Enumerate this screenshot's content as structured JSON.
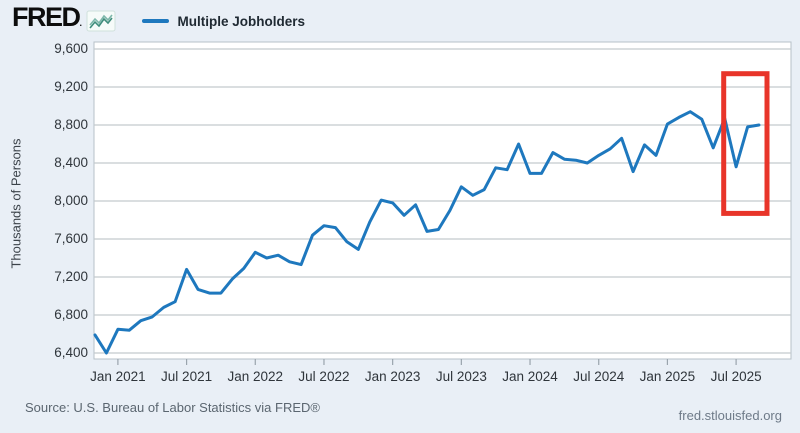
{
  "header": {
    "logo_text": "FRED",
    "logo_reg_mark": "®",
    "sparkline_icon": "fred-sparkline-icon",
    "legend": {
      "label": "Multiple Jobholders",
      "line_color": "#1e78be"
    }
  },
  "y_axis": {
    "title": "Thousands of Persons",
    "tick_labels": [
      "9,600",
      "9,200",
      "8,800",
      "8,400",
      "8,000",
      "7,600",
      "7,200",
      "6,800",
      "6,400"
    ]
  },
  "x_axis": {
    "tick_labels": [
      "Jan 2021",
      "Jul 2021",
      "Jan 2022",
      "Jul 2022",
      "Jan 2023",
      "Jul 2023",
      "Jan 2024",
      "Jul 2024",
      "Jan 2025",
      "Jul 2025"
    ]
  },
  "footer": {
    "source": "Source: U.S. Bureau of Labor Statistics via FRED®",
    "site": "fred.stlouisfed.org"
  },
  "colors": {
    "page_bg": "#e9eff6",
    "plot_bg": "#ffffff",
    "gridline": "#c4c9cd",
    "plot_border": "#b7c0c8",
    "line": "#1e78be",
    "highlight_box": "#e8352a"
  },
  "chart_data": {
    "type": "line",
    "title": "Multiple Jobholders",
    "ylabel": "Thousands of Persons",
    "xlabel": "",
    "grid": true,
    "legend_position": "top-left",
    "ylim": [
      6340,
      9700
    ],
    "yticks": [
      6400,
      6800,
      7200,
      7600,
      8000,
      8400,
      8800,
      9200,
      9600
    ],
    "xticks": [
      {
        "label": "Jan 2021",
        "index": 2
      },
      {
        "label": "Jul 2021",
        "index": 8
      },
      {
        "label": "Jan 2022",
        "index": 14
      },
      {
        "label": "Jul 2022",
        "index": 20
      },
      {
        "label": "Jan 2023",
        "index": 26
      },
      {
        "label": "Jul 2023",
        "index": 32
      },
      {
        "label": "Jan 2024",
        "index": 38
      },
      {
        "label": "Jul 2024",
        "index": 44
      },
      {
        "label": "Jan 2025",
        "index": 50
      },
      {
        "label": "Jul 2025",
        "index": 56
      }
    ],
    "x": [
      "2020-11",
      "2020-12",
      "2021-01",
      "2021-02",
      "2021-03",
      "2021-04",
      "2021-05",
      "2021-06",
      "2021-07",
      "2021-08",
      "2021-09",
      "2021-10",
      "2021-11",
      "2021-12",
      "2022-01",
      "2022-02",
      "2022-03",
      "2022-04",
      "2022-05",
      "2022-06",
      "2022-07",
      "2022-08",
      "2022-09",
      "2022-10",
      "2022-11",
      "2022-12",
      "2023-01",
      "2023-02",
      "2023-03",
      "2023-04",
      "2023-05",
      "2023-06",
      "2023-07",
      "2023-08",
      "2023-09",
      "2023-10",
      "2023-11",
      "2023-12",
      "2024-01",
      "2024-02",
      "2024-03",
      "2024-04",
      "2024-05",
      "2024-06",
      "2024-07",
      "2024-08",
      "2024-09",
      "2024-10",
      "2024-11",
      "2024-12",
      "2025-01",
      "2025-02",
      "2025-03",
      "2025-04",
      "2025-05",
      "2025-06",
      "2025-07",
      "2025-08",
      "2025-09"
    ],
    "series": [
      {
        "name": "Multiple Jobholders",
        "color": "#1e78be",
        "values": [
          6590,
          6400,
          6650,
          6640,
          6740,
          6780,
          6880,
          6940,
          7280,
          7070,
          7030,
          7030,
          7180,
          7290,
          7460,
          7400,
          7430,
          7360,
          7330,
          7640,
          7740,
          7720,
          7570,
          7490,
          7780,
          8010,
          7980,
          7850,
          7960,
          7680,
          7700,
          7900,
          8150,
          8060,
          8120,
          8350,
          8330,
          8600,
          8290,
          8290,
          8510,
          8440,
          8430,
          8400,
          8480,
          8550,
          8660,
          8310,
          8590,
          8480,
          8810,
          8880,
          8940,
          8860,
          8560,
          8870,
          8360,
          8780,
          8800
        ]
      }
    ],
    "annotation": {
      "type": "highlight-box",
      "color": "#e8352a",
      "month_start": "2025-06",
      "month_end": "2025-09",
      "value_top": 9340,
      "value_bottom": 7870
    }
  }
}
